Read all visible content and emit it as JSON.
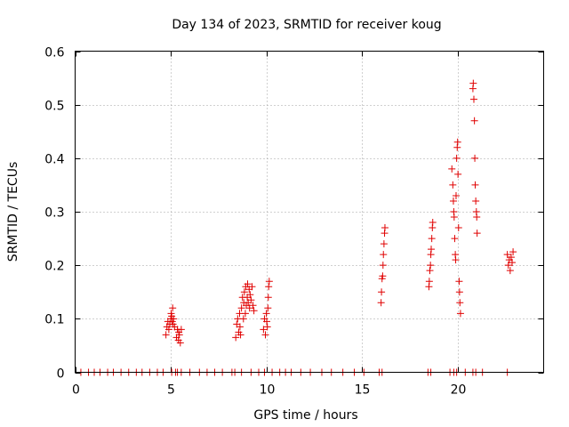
{
  "chart_data": {
    "type": "scatter",
    "title": "Day 134 of 2023, SRMTID for receiver koug",
    "xlabel": "GPS time / hours",
    "ylabel": "SRMTID / TECUs",
    "xlim": [
      0,
      24.5
    ],
    "ylim": [
      0,
      0.6
    ],
    "xticks": [
      0,
      5,
      10,
      15,
      20
    ],
    "xtick_labels": [
      "0",
      "5",
      "10",
      "15",
      "20"
    ],
    "yticks": [
      0,
      0.1,
      0.2,
      0.3,
      0.4,
      0.5,
      0.6
    ],
    "ytick_labels": [
      "0",
      "0.1",
      "0.2",
      "0.3",
      "0.4",
      "0.5",
      "0.6"
    ],
    "grid": true,
    "marker": "plus",
    "color": "#e00000",
    "series": [
      {
        "name": "SRMTID",
        "x": [
          4.75,
          4.8,
          4.85,
          4.9,
          4.95,
          5.0,
          5.02,
          5.05,
          5.08,
          5.1,
          5.12,
          5.15,
          5.2,
          5.3,
          5.35,
          5.4,
          5.42,
          5.45,
          5.5,
          5.55,
          8.4,
          8.45,
          8.5,
          8.55,
          8.6,
          8.62,
          8.65,
          8.7,
          8.75,
          8.8,
          8.82,
          8.85,
          8.9,
          8.92,
          8.95,
          9.0,
          9.02,
          9.05,
          9.1,
          9.12,
          9.15,
          9.2,
          9.25,
          9.3,
          9.35,
          9.85,
          9.9,
          9.95,
          10.0,
          10.02,
          10.05,
          10.08,
          10.1,
          10.12,
          10.15,
          16.0,
          16.02,
          16.05,
          16.08,
          16.1,
          16.12,
          16.15,
          16.18,
          16.2,
          18.5,
          18.52,
          18.55,
          18.58,
          18.6,
          18.62,
          18.65,
          18.68,
          18.7,
          19.7,
          19.75,
          19.78,
          19.8,
          19.82,
          19.85,
          19.88,
          19.9,
          19.92,
          19.95,
          19.98,
          20.0,
          20.02,
          20.05,
          20.08,
          20.1,
          20.12,
          20.15,
          20.8,
          20.82,
          20.85,
          20.88,
          20.9,
          20.92,
          20.95,
          20.98,
          21.0,
          21.02,
          22.6,
          22.65,
          22.7,
          22.75,
          22.8,
          22.85,
          22.9,
          0.3,
          0.7,
          1.0,
          1.3,
          1.7,
          2.0,
          2.4,
          2.8,
          3.2,
          3.5,
          3.9,
          4.3,
          4.6,
          5.05,
          5.25,
          5.35,
          5.55,
          6.0,
          6.5,
          6.9,
          7.3,
          7.7,
          8.2,
          8.35,
          8.7,
          9.2,
          9.6,
          9.9,
          10.3,
          10.7,
          11.0,
          11.3,
          11.8,
          12.3,
          12.9,
          13.4,
          14.0,
          14.6,
          15.1,
          15.9,
          16.05,
          18.45,
          18.6,
          19.6,
          19.8,
          19.95,
          20.4,
          20.8,
          20.95,
          21.3,
          22.6
        ],
        "y": [
          0.07,
          0.085,
          0.095,
          0.08,
          0.09,
          0.1,
          0.11,
          0.105,
          0.095,
          0.12,
          0.09,
          0.1,
          0.085,
          0.065,
          0.08,
          0.06,
          0.075,
          0.07,
          0.055,
          0.08,
          0.065,
          0.09,
          0.1,
          0.075,
          0.11,
          0.085,
          0.07,
          0.12,
          0.14,
          0.1,
          0.13,
          0.15,
          0.11,
          0.16,
          0.125,
          0.14,
          0.165,
          0.13,
          0.155,
          0.12,
          0.145,
          0.135,
          0.16,
          0.125,
          0.115,
          0.08,
          0.1,
          0.07,
          0.11,
          0.095,
          0.085,
          0.12,
          0.14,
          0.16,
          0.17,
          0.13,
          0.15,
          0.175,
          0.18,
          0.2,
          0.22,
          0.24,
          0.26,
          0.27,
          0.16,
          0.17,
          0.19,
          0.2,
          0.22,
          0.23,
          0.25,
          0.27,
          0.28,
          0.38,
          0.35,
          0.32,
          0.3,
          0.29,
          0.25,
          0.22,
          0.21,
          0.33,
          0.4,
          0.42,
          0.43,
          0.37,
          0.27,
          0.17,
          0.15,
          0.13,
          0.11,
          0.53,
          0.54,
          0.51,
          0.47,
          0.4,
          0.35,
          0.32,
          0.3,
          0.29,
          0.26,
          0.22,
          0.2,
          0.21,
          0.19,
          0.215,
          0.205,
          0.225,
          0,
          0,
          0,
          0,
          0,
          0,
          0,
          0,
          0,
          0,
          0,
          0,
          0,
          0,
          0,
          0,
          0,
          0,
          0,
          0,
          0,
          0,
          0,
          0,
          0,
          0,
          0,
          0,
          0,
          0,
          0,
          0,
          0,
          0,
          0,
          0,
          0,
          0,
          0,
          0,
          0,
          0,
          0,
          0,
          0,
          0,
          0,
          0,
          0,
          0,
          0
        ]
      }
    ]
  }
}
